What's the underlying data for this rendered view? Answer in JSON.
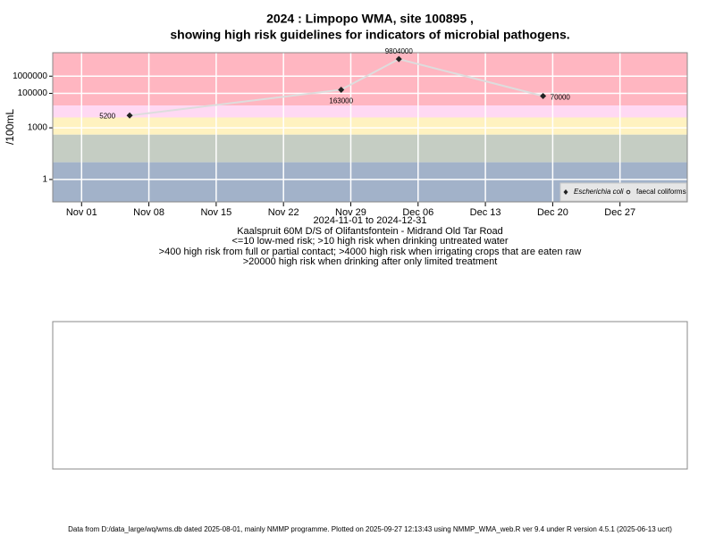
{
  "chart_data": {
    "type": "line",
    "title": "2024 : Limpopo WMA, site 100895 ,",
    "subtitle": "showing high risk guidelines for indicators of microbial pathogens.",
    "x_label": "2024-11-01 to 2024-12-31",
    "site": "Kaalspruit 60M D/S of Olifantsfontein - Midrand Old Tar Road",
    "notes": [
      "<=10 low-med risk; >10 high risk when drinking untreated water",
      ">400 high risk from full or partial contact; >4000 high risk when irrigating crops that are eaten raw",
      ">20000 high risk when drinking after only limited treatment"
    ],
    "y_label": "/100mL",
    "footer": "Data from D:/data_large/wq/wms.db dated 2025-08-01, mainly NMMP programme. Plotted on 2025-09-27 12:13:43 using NMMP_WMA_web.R ver 9.4 under R version 4.5.1 (2025-06-13 ucrt)",
    "x": [
      "2024-11-06",
      "2024-11-28",
      "2024-12-04",
      "2024-12-19"
    ],
    "series": [
      {
        "name": "Escherichia coli",
        "color": "#222222",
        "values": [
          5200,
          163000,
          9804000,
          70000
        ]
      },
      {
        "name": "faecal coliforms",
        "color": "#222222",
        "values": [
          null,
          null,
          null,
          null
        ]
      }
    ],
    "line_color": "#dddddd",
    "log_y": true,
    "ylim": [
      0.05,
      23000000
    ],
    "yticks": [
      1,
      1000,
      100000,
      1000000
    ],
    "xlim": [
      "2024-10-29",
      "2025-01-03"
    ],
    "xticks": [
      {
        "value": "2024-11-01",
        "label": "Nov 01"
      },
      {
        "value": "2024-11-08",
        "label": "Nov 08"
      },
      {
        "value": "2024-11-15",
        "label": "Nov 15"
      },
      {
        "value": "2024-11-22",
        "label": "Nov 22"
      },
      {
        "value": "2024-11-29",
        "label": "Nov 29"
      },
      {
        "value": "2024-12-06",
        "label": "Dec 06"
      },
      {
        "value": "2024-12-13",
        "label": "Dec 13"
      },
      {
        "value": "2024-12-20",
        "label": "Dec 20"
      },
      {
        "value": "2024-12-27",
        "label": "Dec 27"
      }
    ],
    "bands": [
      {
        "from": 20000,
        "color": "#ffb6c1"
      },
      {
        "from": 4000,
        "to": 20000,
        "color": "#ffd9f3"
      },
      {
        "from": 400,
        "to": 4000,
        "color": "#fff2c0"
      },
      {
        "from": 10,
        "to": 400,
        "color": "#c5cdc3"
      },
      {
        "to": 10,
        "color": "#a2b2c9"
      }
    ],
    "grid": true,
    "legend": "bottom-right"
  }
}
